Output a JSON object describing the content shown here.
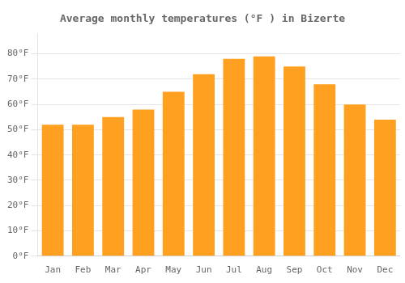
{
  "chart_data": {
    "type": "bar",
    "title": "Average monthly temperatures (°F ) in Bizerte",
    "categories": [
      "Jan",
      "Feb",
      "Mar",
      "Apr",
      "May",
      "Jun",
      "Jul",
      "Aug",
      "Sep",
      "Oct",
      "Nov",
      "Dec"
    ],
    "values": [
      52,
      52,
      55,
      58,
      65,
      72,
      78,
      79,
      75,
      68,
      60,
      54
    ],
    "color": "#FFA020",
    "ylim": [
      0,
      88
    ],
    "yticks": [
      {
        "value": 0,
        "label": "0°F"
      },
      {
        "value": 10,
        "label": "10°F"
      },
      {
        "value": 20,
        "label": "20°F"
      },
      {
        "value": 30,
        "label": "30°F"
      },
      {
        "value": 40,
        "label": "40°F"
      },
      {
        "value": 50,
        "label": "50°F"
      },
      {
        "value": 60,
        "label": "60°F"
      },
      {
        "value": 70,
        "label": "70°F"
      },
      {
        "value": 80,
        "label": "80°F"
      }
    ],
    "grid": true
  }
}
